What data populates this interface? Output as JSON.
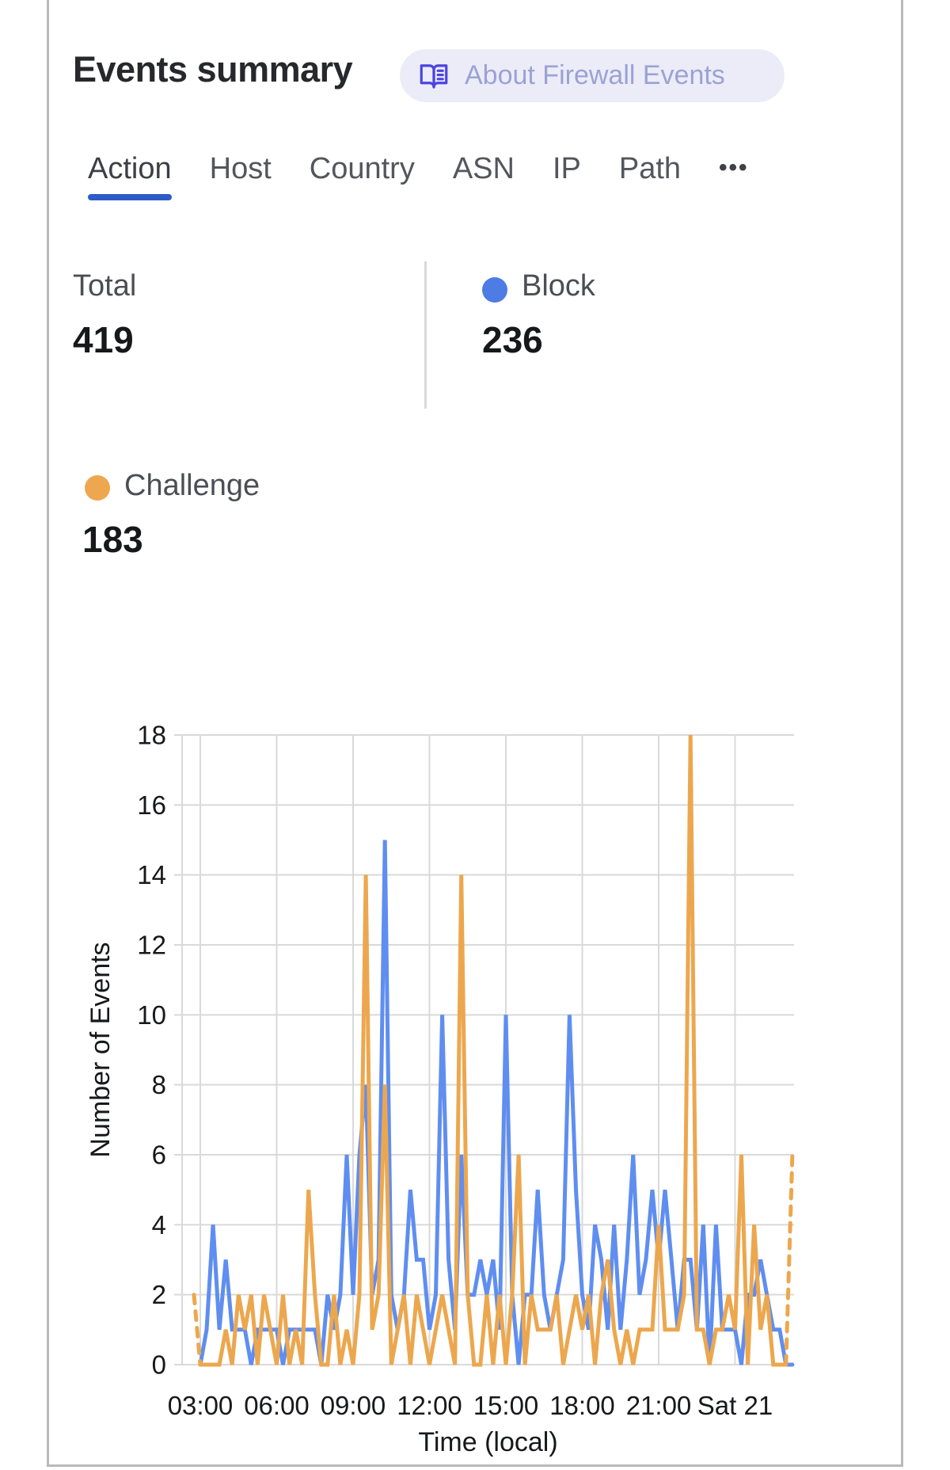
{
  "header": {
    "title": "Events summary",
    "about_button": {
      "label": "About Firewall Events",
      "icon": "book-open-icon"
    }
  },
  "tabs": {
    "items": [
      {
        "label": "Action",
        "active": true
      },
      {
        "label": "Host",
        "active": false
      },
      {
        "label": "Country",
        "active": false
      },
      {
        "label": "ASN",
        "active": false
      },
      {
        "label": "IP",
        "active": false
      },
      {
        "label": "Path",
        "active": false
      }
    ],
    "more_label": "•••"
  },
  "stats": {
    "total": {
      "label": "Total",
      "value": "419"
    },
    "block": {
      "label": "Block",
      "value": "236",
      "color": "#4d7ce4"
    },
    "challenge": {
      "label": "Challenge",
      "value": "183",
      "color": "#eda84f"
    }
  },
  "chart_data": {
    "type": "line",
    "title": "",
    "xlabel": "Time (local)",
    "ylabel": "Number of Events",
    "ylim": [
      0,
      18
    ],
    "grid": true,
    "y_ticks": [
      0,
      2,
      4,
      6,
      8,
      10,
      12,
      14,
      16,
      18
    ],
    "x_tick_labels": [
      "03:00",
      "06:00",
      "09:00",
      "12:00",
      "15:00",
      "18:00",
      "21:00",
      "Sat 21"
    ],
    "x_start": "02:45",
    "x_step_minutes": 15,
    "series": [
      {
        "name": "Block",
        "color": "#5f8ef0",
        "dashed_start": false,
        "dashed_end": false,
        "values": [
          null,
          0,
          1,
          4,
          1,
          3,
          1,
          1,
          1,
          0,
          1,
          1,
          1,
          1,
          0,
          1,
          1,
          1,
          1,
          1,
          0,
          2,
          1,
          2,
          6,
          2,
          6,
          8,
          2,
          3,
          15,
          2,
          1,
          2,
          5,
          3,
          3,
          1,
          2,
          10,
          3,
          1,
          6,
          2,
          2,
          3,
          2,
          3,
          1,
          10,
          2,
          0,
          2,
          2,
          5,
          2,
          1,
          2,
          3,
          10,
          5,
          2,
          1,
          4,
          3,
          1,
          4,
          1,
          3,
          6,
          2,
          3,
          5,
          3,
          5,
          3,
          1,
          3,
          3,
          1,
          4,
          0,
          4,
          1,
          1,
          1,
          0,
          2,
          2,
          3,
          2,
          1,
          1,
          0,
          0
        ]
      },
      {
        "name": "Challenge",
        "color": "#eca74e",
        "dashed_start": true,
        "dashed_end": true,
        "values": [
          2,
          0,
          0,
          0,
          0,
          1,
          0,
          2,
          1,
          2,
          0,
          2,
          1,
          0,
          2,
          0,
          1,
          0,
          5,
          2,
          0,
          0,
          2,
          0,
          1,
          0,
          2,
          14,
          1,
          2,
          8,
          0,
          1,
          2,
          0,
          2,
          1,
          0,
          1,
          2,
          1,
          0,
          14,
          2,
          0,
          0,
          2,
          0,
          2,
          0,
          2,
          6,
          0,
          2,
          1,
          1,
          1,
          2,
          0,
          1,
          2,
          1,
          2,
          0,
          2,
          3,
          1,
          0,
          1,
          0,
          1,
          1,
          1,
          4,
          1,
          1,
          1,
          2,
          18,
          1,
          1,
          0,
          1,
          1,
          2,
          1,
          6,
          0,
          4,
          1,
          2,
          0,
          0,
          0,
          6
        ]
      }
    ],
    "legend_position": "top-stats"
  },
  "colors": {
    "tab_underline": "#2d5bc8",
    "pill_bg": "#ececf8",
    "pill_text": "#9ba2d4",
    "pill_icon": "#4a43e4",
    "grid": "#d9d9d9",
    "frame": "#b9b9b9"
  }
}
